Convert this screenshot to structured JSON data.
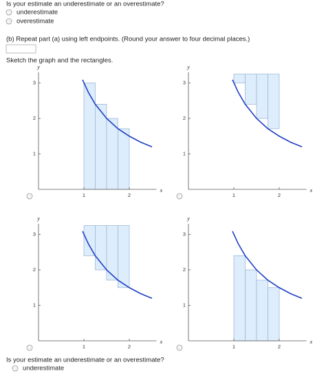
{
  "question_a": {
    "prompt": "Is your estimate an underestimate or an overestimate?",
    "options": [
      "underestimate",
      "overestimate"
    ]
  },
  "part_b": "(b) Repeat part (a) using left endpoints. (Round your answer to four decimal places.)",
  "sketch_prompt": "Sketch the graph and the rectangles.",
  "axes": {
    "x_label": "x",
    "y_label": "y",
    "xlim": [
      0,
      2.6
    ],
    "ylim": [
      0,
      3.3
    ],
    "xticks": [
      1,
      2
    ],
    "yticks": [
      1,
      2,
      3
    ]
  },
  "curve": {
    "x": [
      0.97,
      1.1,
      1.25,
      1.5,
      1.75,
      2,
      2.25,
      2.5
    ],
    "y": [
      3.09,
      2.73,
      2.4,
      2,
      1.71,
      1.5,
      1.33,
      1.2
    ]
  },
  "graphs": [
    {
      "rects": [
        {
          "x0": 1,
          "x1": 1.25,
          "y0": 0,
          "y1": 3
        },
        {
          "x0": 1.25,
          "x1": 1.5,
          "y0": 0,
          "y1": 2.4
        },
        {
          "x0": 1.5,
          "x1": 1.75,
          "y0": 0,
          "y1": 2
        },
        {
          "x0": 1.75,
          "x1": 2,
          "y0": 0,
          "y1": 1.71
        }
      ]
    },
    {
      "rects": [
        {
          "x0": 1,
          "x1": 1.25,
          "y0": 3,
          "y1": 3.25
        },
        {
          "x0": 1.25,
          "x1": 1.5,
          "y0": 2.4,
          "y1": 3.25
        },
        {
          "x0": 1.5,
          "x1": 1.75,
          "y0": 2,
          "y1": 3.25
        },
        {
          "x0": 1.75,
          "x1": 2,
          "y0": 1.71,
          "y1": 3.25
        }
      ]
    },
    {
      "rects": [
        {
          "x0": 1,
          "x1": 1.25,
          "y0": 2.4,
          "y1": 3.25
        },
        {
          "x0": 1.25,
          "x1": 1.5,
          "y0": 2,
          "y1": 3.25
        },
        {
          "x0": 1.5,
          "x1": 1.75,
          "y0": 1.71,
          "y1": 3.25
        },
        {
          "x0": 1.75,
          "x1": 2,
          "y0": 1.5,
          "y1": 3.25
        }
      ]
    },
    {
      "rects": [
        {
          "x0": 1,
          "x1": 1.25,
          "y0": 0,
          "y1": 2.4
        },
        {
          "x0": 1.25,
          "x1": 1.5,
          "y0": 0,
          "y1": 2
        },
        {
          "x0": 1.5,
          "x1": 1.75,
          "y0": 0,
          "y1": 1.71
        },
        {
          "x0": 1.75,
          "x1": 2,
          "y0": 0,
          "y1": 1.5
        }
      ]
    }
  ],
  "question_c": {
    "prompt": "Is your estimate an underestimate or an overestimate?",
    "options": [
      "underestimate"
    ]
  }
}
